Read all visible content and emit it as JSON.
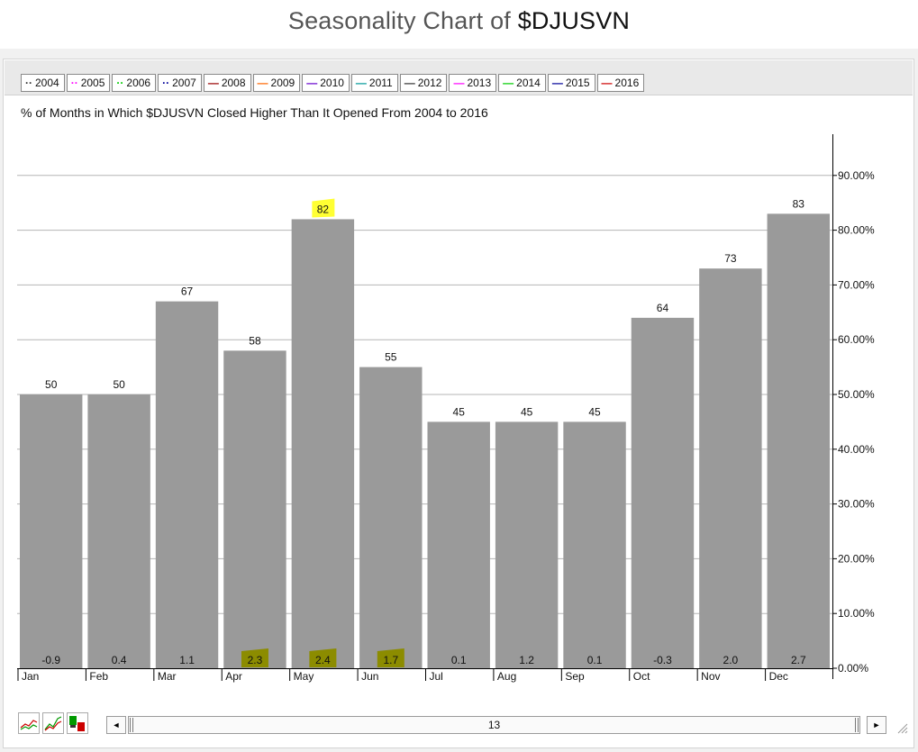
{
  "page": {
    "title_prefix": "Seasonality Chart of ",
    "title_symbol": "$DJUSVN"
  },
  "legend": [
    {
      "label": "2004",
      "color": "#333333",
      "glyph": "··"
    },
    {
      "label": "2005",
      "color": "#ff00ff",
      "glyph": "··"
    },
    {
      "label": "2006",
      "color": "#00cc00",
      "glyph": "··"
    },
    {
      "label": "2007",
      "color": "#000099",
      "glyph": "··"
    },
    {
      "label": "2008",
      "color": "#990000",
      "glyph": "—"
    },
    {
      "label": "2009",
      "color": "#ff6600",
      "glyph": "—"
    },
    {
      "label": "2010",
      "color": "#6600cc",
      "glyph": "—"
    },
    {
      "label": "2011",
      "color": "#009999",
      "glyph": "—"
    },
    {
      "label": "2012",
      "color": "#333333",
      "glyph": "—"
    },
    {
      "label": "2013",
      "color": "#ff00ff",
      "glyph": "—"
    },
    {
      "label": "2014",
      "color": "#00cc00",
      "glyph": "—"
    },
    {
      "label": "2015",
      "color": "#000099",
      "glyph": "—"
    },
    {
      "label": "2016",
      "color": "#cc0000",
      "glyph": "—"
    }
  ],
  "chart_data": {
    "type": "bar",
    "title": "% of Months in Which $DJUSVN Closed Higher Than It Opened From 2004 to 2016",
    "categories": [
      "Jan",
      "Feb",
      "Mar",
      "Apr",
      "May",
      "Jun",
      "Jul",
      "Aug",
      "Sep",
      "Oct",
      "Nov",
      "Dec"
    ],
    "values": [
      50,
      50,
      67,
      58,
      82,
      55,
      45,
      45,
      45,
      64,
      73,
      83
    ],
    "value_labels": [
      "50",
      "50",
      "67",
      "58",
      "82",
      "55",
      "45",
      "45",
      "45",
      "64",
      "73",
      "83"
    ],
    "avg_returns": [
      "-0.9",
      "0.4",
      "1.1",
      "2.3",
      "2.4",
      "1.7",
      "0.1",
      "1.2",
      "0.1",
      "-0.3",
      "2.0",
      "2.7"
    ],
    "highlighted_values": [
      "May"
    ],
    "highlighted_returns": [
      "Apr",
      "May",
      "Jun"
    ],
    "ylim": [
      0,
      100
    ],
    "yticks": [
      "0.00%",
      "10.00%",
      "20.00%",
      "30.00%",
      "40.00%",
      "50.00%",
      "60.00%",
      "70.00%",
      "80.00%",
      "90.00%"
    ],
    "ytick_values": [
      0,
      10,
      20,
      30,
      40,
      50,
      60,
      70,
      80,
      90
    ],
    "y_axis_side": "right",
    "grid": true,
    "colors": {
      "bar": "#9a9a9a",
      "grid": "#b5b5b5",
      "highlight_bright": "#ffff33",
      "highlight_dark": "#8c8c00"
    }
  },
  "controls": {
    "scroll_value": "13",
    "scroll_left_arrow": "◄",
    "scroll_right_arrow": "►"
  }
}
